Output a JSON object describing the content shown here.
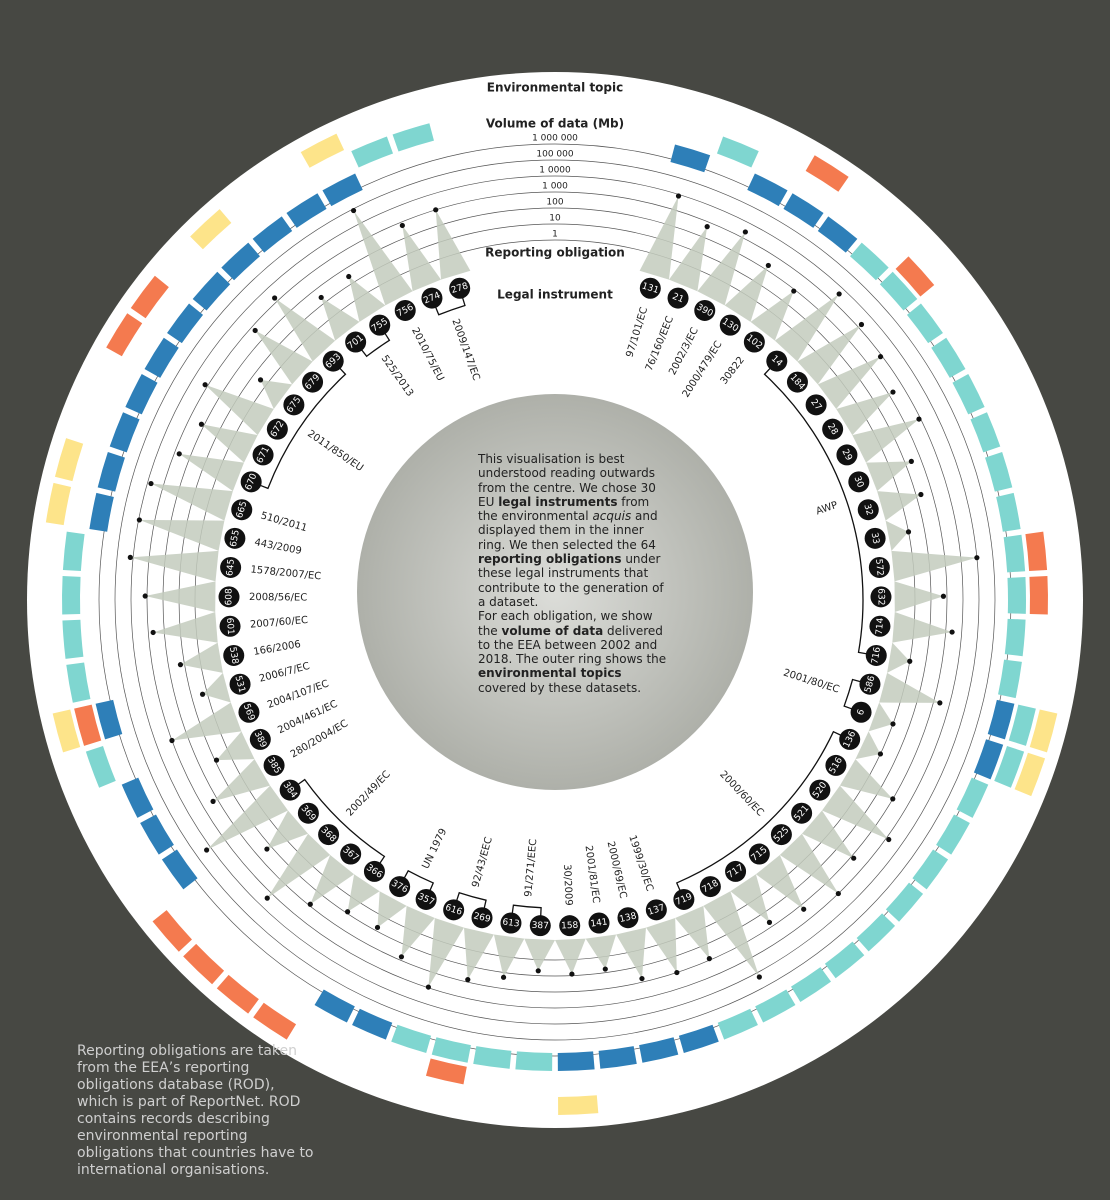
{
  "chart_data": {
    "type": "radial",
    "topic_label": "Environmental topic",
    "value_label": "Volume of data (Mb)",
    "obligation_label": "Reporting obligation",
    "instrument_label": "Legal instrument",
    "yscale": "log",
    "ylim": [
      1,
      1000000
    ],
    "yticks": [
      1,
      10,
      100,
      {
        "value": 1000,
        "label": "1 000"
      },
      {
        "value": 10000,
        "label": "1 0000"
      },
      {
        "value": 100000,
        "label": "100 000"
      },
      {
        "value": 1000000,
        "label": "1 000 000"
      }
    ],
    "spike_color": "#c3cbbd",
    "instruments": [
      {
        "label": "97/101/EC",
        "obligations": [
          {
            "id": "131",
            "value": 8000,
            "topics": [
              "#2e7fb8"
            ]
          }
        ]
      },
      {
        "label": "76/160/EEC",
        "obligations": [
          {
            "id": "21",
            "value": 500,
            "topics": [
              null,
              "#7fd6d0"
            ]
          }
        ]
      },
      {
        "label": "2002/3/EC",
        "obligations": [
          {
            "id": "390",
            "value": 2500,
            "topics": [
              "#2e7fb8"
            ]
          }
        ]
      },
      {
        "label": "2000/479/EC",
        "obligations": [
          {
            "id": "130",
            "value": 200,
            "topics": [
              "#2e7fb8",
              null,
              "#f47a4f"
            ]
          }
        ]
      },
      {
        "label": "30822",
        "obligations": [
          {
            "id": "102",
            "value": 80,
            "topics": [
              "#2e7fb8"
            ]
          }
        ]
      },
      {
        "label": "AWP",
        "obligations": [
          {
            "id": "14",
            "value": 4000,
            "topics": [
              "#7fd6d0"
            ]
          },
          {
            "id": "184",
            "value": 1800,
            "topics": [
              "#7fd6d0",
              "#f47a4f"
            ]
          },
          {
            "id": "27",
            "value": 800,
            "topics": [
              "#7fd6d0"
            ]
          },
          {
            "id": "28",
            "value": 200,
            "topics": [
              "#7fd6d0"
            ]
          },
          {
            "id": "29",
            "value": 800,
            "topics": [
              "#7fd6d0"
            ]
          },
          {
            "id": "30",
            "value": 25,
            "topics": [
              "#7fd6d0"
            ]
          },
          {
            "id": "32",
            "value": 20,
            "topics": [
              "#7fd6d0"
            ]
          },
          {
            "id": "33",
            "value": 1,
            "topics": [
              "#7fd6d0"
            ]
          },
          {
            "id": "572",
            "value": 10000,
            "topics": [
              "#7fd6d0",
              "#f47a4f"
            ]
          },
          {
            "id": "632",
            "value": 60,
            "topics": [
              "#7fd6d0",
              "#f47a4f"
            ]
          },
          {
            "id": "714",
            "value": 250,
            "topics": [
              "#7fd6d0"
            ]
          },
          {
            "id": "716",
            "value": 1,
            "topics": [
              "#7fd6d0"
            ]
          }
        ]
      },
      {
        "label": "2001/80/EC",
        "obligations": [
          {
            "id": "586",
            "value": 250,
            "topics": [
              "#2e7fb8",
              "#7fd6d0",
              "#fde48a"
            ]
          },
          {
            "id": "6",
            "value": 1,
            "topics": [
              "#2e7fb8",
              "#7fd6d0",
              "#fde48a"
            ]
          }
        ]
      },
      {
        "label": "2000/60/EC",
        "obligations": [
          {
            "id": "136",
            "value": 1,
            "topics": [
              "#7fd6d0"
            ]
          },
          {
            "id": "516",
            "value": 100,
            "topics": [
              "#7fd6d0"
            ]
          },
          {
            "id": "520",
            "value": 1500,
            "topics": [
              "#7fd6d0"
            ]
          },
          {
            "id": "521",
            "value": 150,
            "topics": [
              "#7fd6d0"
            ]
          },
          {
            "id": "525",
            "value": 1000,
            "topics": [
              "#7fd6d0"
            ]
          },
          {
            "id": "715",
            "value": 200,
            "topics": [
              "#7fd6d0"
            ]
          },
          {
            "id": "717",
            "value": 50,
            "topics": [
              "#7fd6d0"
            ]
          },
          {
            "id": "718",
            "value": 20000,
            "topics": [
              "#7fd6d0"
            ]
          },
          {
            "id": "719",
            "value": 80,
            "topics": [
              "#7fd6d0"
            ]
          }
        ]
      },
      {
        "label": "1999/30/EC",
        "obligations": [
          {
            "id": "137",
            "value": 100,
            "topics": [
              "#2e7fb8"
            ]
          }
        ]
      },
      {
        "label": "2000/69/EC",
        "obligations": [
          {
            "id": "138",
            "value": 60,
            "topics": [
              "#2e7fb8"
            ]
          }
        ]
      },
      {
        "label": "2001/81/EC",
        "obligations": [
          {
            "id": "141",
            "value": 6,
            "topics": [
              "#2e7fb8"
            ]
          }
        ]
      },
      {
        "label": "30/2009",
        "obligations": [
          {
            "id": "158",
            "value": 8,
            "topics": [
              "#2e7fb8",
              null,
              "#fde48a"
            ]
          }
        ]
      },
      {
        "label": "91/271/EEC",
        "obligations": [
          {
            "id": "387",
            "value": 5,
            "topics": [
              "#7fd6d0"
            ]
          },
          {
            "id": "613",
            "value": 20,
            "topics": [
              "#7fd6d0"
            ]
          }
        ]
      },
      {
        "label": "92/43/EEC",
        "obligations": [
          {
            "id": "269",
            "value": 70,
            "topics": [
              "#7fd6d0",
              "#f47a4f"
            ]
          },
          {
            "id": "616",
            "value": 900,
            "topics": [
              "#7fd6d0"
            ]
          }
        ]
      },
      {
        "label": "UN 1979",
        "obligations": [
          {
            "id": "357",
            "value": 60,
            "topics": [
              "#2e7fb8"
            ]
          },
          {
            "id": "376",
            "value": 6,
            "topics": [
              "#2e7fb8"
            ]
          }
        ]
      },
      {
        "label": "2002/49/EC",
        "obligations": [
          {
            "id": "366",
            "value": 8,
            "topics": [
              null,
              null,
              "#f47a4f"
            ]
          },
          {
            "id": "367",
            "value": 80,
            "topics": [
              null,
              null,
              "#f47a4f"
            ]
          },
          {
            "id": "368",
            "value": 2500,
            "topics": [
              null,
              null,
              "#f47a4f"
            ]
          },
          {
            "id": "369",
            "value": 20,
            "topics": [
              null,
              null,
              "#f47a4f"
            ]
          },
          {
            "id": "384",
            "value": 20000,
            "topics": [
              "#2e7fb8"
            ]
          }
        ]
      },
      {
        "label": "280/2004/EC",
        "obligations": [
          {
            "id": "385",
            "value": 200,
            "topics": [
              "#2e7fb8"
            ]
          }
        ]
      },
      {
        "label": "2004/461/EC",
        "obligations": [
          {
            "id": "389",
            "value": 8,
            "topics": [
              "#2e7fb8"
            ]
          }
        ]
      },
      {
        "label": "2004/107/EC",
        "obligations": [
          {
            "id": "569",
            "value": 1000,
            "topics": [
              null,
              "#7fd6d0"
            ]
          }
        ]
      },
      {
        "label": "2006/7/EC",
        "obligations": [
          {
            "id": "531",
            "value": 2,
            "topics": [
              "#2e7fb8",
              "#f47a4f",
              "#fde48a"
            ]
          }
        ]
      },
      {
        "label": "166/2006",
        "obligations": [
          {
            "id": "538",
            "value": 18,
            "topics": [
              null,
              "#7fd6d0"
            ]
          }
        ]
      },
      {
        "label": "2007/60/EC",
        "obligations": [
          {
            "id": "601",
            "value": 500,
            "topics": [
              null,
              "#7fd6d0"
            ]
          }
        ]
      },
      {
        "label": "2008/56/EC",
        "obligations": [
          {
            "id": "608",
            "value": 1300,
            "topics": [
              null,
              "#7fd6d0"
            ]
          }
        ]
      },
      {
        "label": "1578/2007/EC",
        "obligations": [
          {
            "id": "645",
            "value": 15000,
            "topics": [
              null,
              "#7fd6d0"
            ]
          }
        ]
      },
      {
        "label": "443/2009",
        "obligations": [
          {
            "id": "655",
            "value": 9000,
            "topics": [
              "#2e7fb8",
              null,
              "#fde48a"
            ]
          }
        ]
      },
      {
        "label": "510/2011",
        "obligations": [
          {
            "id": "665",
            "value": 6000,
            "topics": [
              "#2e7fb8",
              null,
              "#fde48a"
            ]
          }
        ]
      },
      {
        "label": "2011/850/EU",
        "obligations": [
          {
            "id": "670",
            "value": 500,
            "topics": [
              "#2e7fb8"
            ]
          },
          {
            "id": "671",
            "value": 150,
            "topics": [
              "#2e7fb8"
            ]
          },
          {
            "id": "672",
            "value": 1500,
            "topics": [
              "#2e7fb8",
              null,
              "#f47a4f"
            ]
          },
          {
            "id": "675",
            "value": 3,
            "topics": [
              "#2e7fb8",
              null,
              "#f47a4f"
            ]
          },
          {
            "id": "679",
            "value": 500,
            "topics": [
              "#2e7fb8"
            ]
          },
          {
            "id": "693",
            "value": 1800,
            "topics": [
              "#2e7fb8",
              null,
              "#fde48a"
            ]
          }
        ]
      },
      {
        "label": "525/2013",
        "obligations": [
          {
            "id": "701",
            "value": 25,
            "topics": [
              "#2e7fb8"
            ]
          },
          {
            "id": "755",
            "value": 30,
            "topics": [
              "#2e7fb8"
            ]
          }
        ]
      },
      {
        "label": "2010/75/EU",
        "obligations": [
          {
            "id": "756",
            "value": 80000,
            "topics": [
              "#2e7fb8",
              null,
              "#fde48a"
            ]
          }
        ]
      },
      {
        "label": "2009/147/EC",
        "obligations": [
          {
            "id": "274",
            "value": 600,
            "topics": [
              null,
              "#7fd6d0"
            ]
          },
          {
            "id": "278",
            "value": 1000,
            "topics": [
              null,
              "#7fd6d0"
            ]
          }
        ]
      }
    ]
  },
  "intro": [
    [
      {
        "text": "This visualisation is best understood reading outwards from the centre. We chose 30 EU "
      },
      {
        "text": "legal instruments",
        "style": "bold"
      },
      {
        "text": " from the environmental "
      },
      {
        "text": "acquis",
        "style": "italic"
      },
      {
        "text": " and displayed them in the inner ring. We then selected the 64 "
      },
      {
        "text": "reporting obligations",
        "style": "bold"
      },
      {
        "text": " under these legal instruments that contribute to the generation of a dataset."
      }
    ],
    [
      {
        "text": "For each obligation, we show the "
      },
      {
        "text": "volume of data",
        "style": "bold"
      },
      {
        "text": " delivered to the EEA between 2002 and 2018. The outer ring shows the "
      },
      {
        "text": "environmental topics",
        "style": "bold"
      },
      {
        "text": " covered by these datasets."
      }
    ]
  ],
  "note": "Reporting obligations are taken from the EEA’s reporting obligations database (ROD), which is part of ReportNet. ROD contains records describing environmental reporting obligations that countries have to international organisations."
}
